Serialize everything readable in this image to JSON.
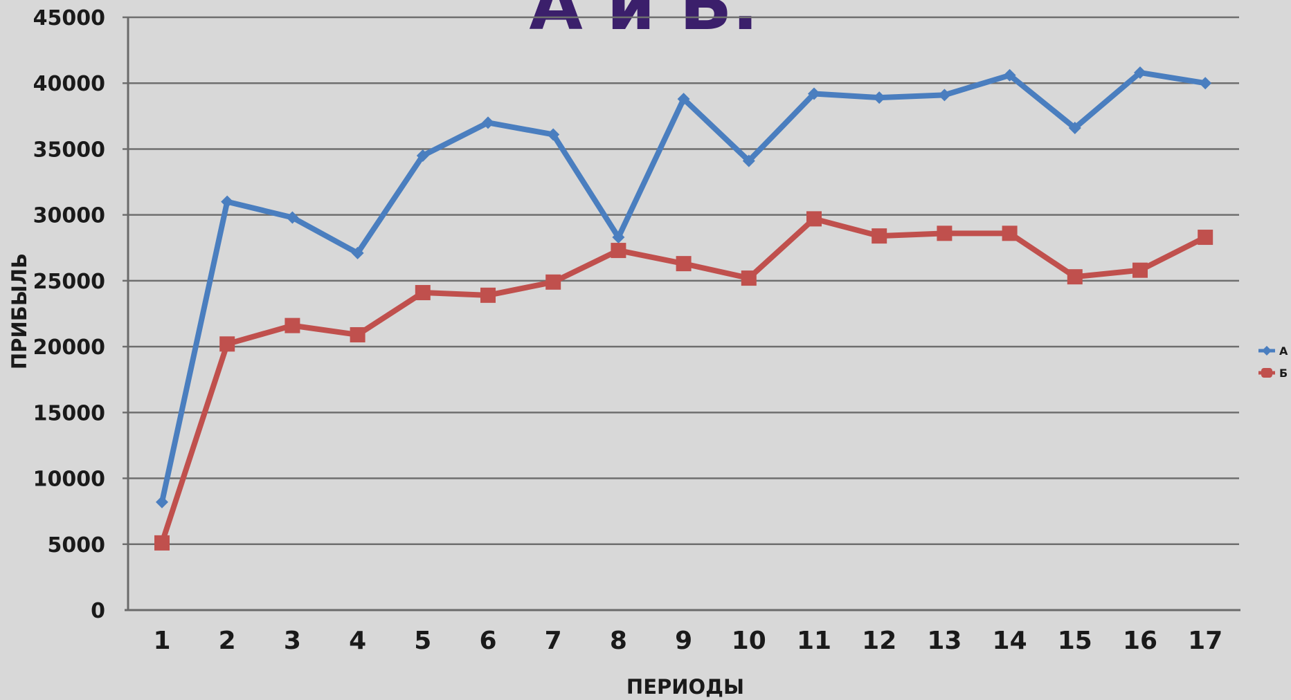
{
  "chart_data": {
    "type": "line",
    "title": "А и Б.",
    "xlabel": "ПЕРИОДЫ",
    "ylabel": "ПРИБЫЛЬ",
    "categories": [
      "1",
      "2",
      "3",
      "4",
      "5",
      "6",
      "7",
      "8",
      "9",
      "10",
      "11",
      "12",
      "13",
      "14",
      "15",
      "16",
      "17"
    ],
    "ylim": [
      0,
      45000
    ],
    "yticks": [
      "0",
      "5000",
      "10000",
      "15000",
      "20000",
      "25000",
      "30000",
      "35000",
      "40000",
      "45000"
    ],
    "grid": true,
    "legend_position": "right",
    "series": [
      {
        "name": "А",
        "color": "#4a7ebf",
        "marker": "diamond",
        "values": [
          8200,
          31000,
          29800,
          27100,
          34500,
          37000,
          36100,
          28300,
          38800,
          34100,
          39200,
          38900,
          39100,
          40600,
          36600,
          40800,
          40000
        ]
      },
      {
        "name": "Б",
        "color": "#c0504d",
        "marker": "square",
        "values": [
          5100,
          20200,
          21600,
          20900,
          24100,
          23900,
          24900,
          27300,
          26300,
          25200,
          29700,
          28400,
          28600,
          28600,
          25300,
          25800,
          28300
        ]
      }
    ]
  }
}
